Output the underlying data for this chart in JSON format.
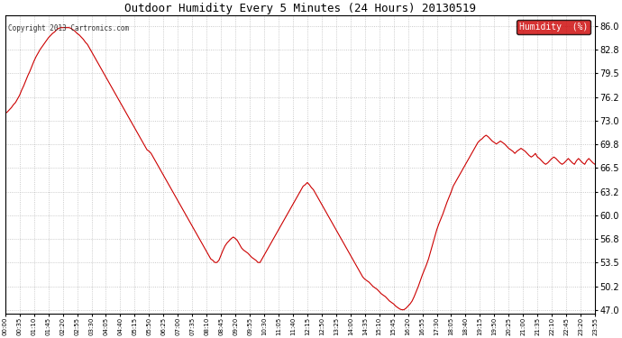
{
  "title": "Outdoor Humidity Every 5 Minutes (24 Hours) 20130519",
  "copyright_text": "Copyright 2013 Cartronics.com",
  "legend_label": "Humidity  (%)",
  "legend_bg": "#cc0000",
  "legend_text_color": "#ffffff",
  "line_color": "#cc0000",
  "bg_color": "#ffffff",
  "grid_color": "#bbbbbb",
  "title_color": "#000000",
  "y_ticks": [
    47.0,
    50.2,
    53.5,
    56.8,
    60.0,
    63.2,
    66.5,
    69.8,
    73.0,
    76.2,
    79.5,
    82.8,
    86.0
  ],
  "ylim": [
    46.5,
    87.5
  ],
  "x_tick_every": 7,
  "humidity_values": [
    74.0,
    74.2,
    74.5,
    74.8,
    75.2,
    75.5,
    76.0,
    76.5,
    77.2,
    77.8,
    78.5,
    79.2,
    79.8,
    80.5,
    81.2,
    81.8,
    82.3,
    82.8,
    83.2,
    83.6,
    84.0,
    84.4,
    84.7,
    85.0,
    85.2,
    85.5,
    85.7,
    85.8,
    85.8,
    85.8,
    85.8,
    85.8,
    85.7,
    85.5,
    85.3,
    85.0,
    84.8,
    84.5,
    84.2,
    83.8,
    83.5,
    83.0,
    82.5,
    82.0,
    81.5,
    81.0,
    80.5,
    80.0,
    79.5,
    79.0,
    78.5,
    78.0,
    77.5,
    77.0,
    76.5,
    76.0,
    75.5,
    75.0,
    74.5,
    74.0,
    73.5,
    73.0,
    72.5,
    72.0,
    71.5,
    71.0,
    70.5,
    70.0,
    69.5,
    69.0,
    68.8,
    68.5,
    68.0,
    67.5,
    67.0,
    66.5,
    66.0,
    65.5,
    65.0,
    64.5,
    64.0,
    63.5,
    63.0,
    62.5,
    62.0,
    61.5,
    61.0,
    60.5,
    60.0,
    59.5,
    59.0,
    58.5,
    58.0,
    57.5,
    57.0,
    56.5,
    56.0,
    55.5,
    55.0,
    54.5,
    54.0,
    53.8,
    53.5,
    53.5,
    53.8,
    54.5,
    55.2,
    55.8,
    56.2,
    56.5,
    56.8,
    57.0,
    56.8,
    56.5,
    56.0,
    55.5,
    55.2,
    55.0,
    54.8,
    54.5,
    54.2,
    54.0,
    53.8,
    53.5,
    53.5,
    54.0,
    54.5,
    55.0,
    55.5,
    56.0,
    56.5,
    57.0,
    57.5,
    58.0,
    58.5,
    59.0,
    59.5,
    60.0,
    60.5,
    61.0,
    61.5,
    62.0,
    62.5,
    63.0,
    63.5,
    64.0,
    64.2,
    64.5,
    64.2,
    63.8,
    63.5,
    63.0,
    62.5,
    62.0,
    61.5,
    61.0,
    60.5,
    60.0,
    59.5,
    59.0,
    58.5,
    58.0,
    57.5,
    57.0,
    56.5,
    56.0,
    55.5,
    55.0,
    54.5,
    54.0,
    53.5,
    53.0,
    52.5,
    52.0,
    51.5,
    51.2,
    51.0,
    50.8,
    50.5,
    50.2,
    50.0,
    49.8,
    49.5,
    49.2,
    49.0,
    48.8,
    48.5,
    48.2,
    48.0,
    47.8,
    47.5,
    47.3,
    47.1,
    47.0,
    47.0,
    47.2,
    47.5,
    47.8,
    48.2,
    48.8,
    49.5,
    50.2,
    51.0,
    51.8,
    52.5,
    53.2,
    54.0,
    55.0,
    56.0,
    57.0,
    58.0,
    58.8,
    59.5,
    60.2,
    61.0,
    61.8,
    62.5,
    63.2,
    64.0,
    64.5,
    65.0,
    65.5,
    66.0,
    66.5,
    67.0,
    67.5,
    68.0,
    68.5,
    69.0,
    69.5,
    70.0,
    70.3,
    70.5,
    70.8,
    71.0,
    70.8,
    70.5,
    70.2,
    70.0,
    69.8,
    70.0,
    70.2,
    70.0,
    69.8,
    69.5,
    69.2,
    69.0,
    68.8,
    68.5,
    68.8,
    69.0,
    69.2,
    69.0,
    68.8,
    68.5,
    68.2,
    68.0,
    68.2,
    68.5,
    68.0,
    67.8,
    67.5,
    67.2,
    67.0,
    67.2,
    67.5,
    67.8,
    68.0,
    67.8,
    67.5,
    67.2,
    67.0,
    67.2,
    67.5,
    67.8,
    67.5,
    67.2,
    67.0,
    67.5,
    67.8,
    67.5,
    67.2,
    67.0,
    67.5,
    67.8,
    67.5,
    67.2,
    67.0
  ]
}
